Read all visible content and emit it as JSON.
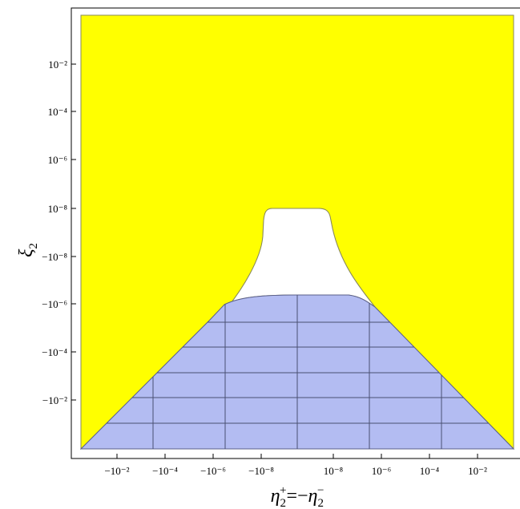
{
  "chart_data": {
    "type": "area",
    "title": "",
    "xlabel": "η₂⁺=−η₂⁻",
    "ylabel": "ξ₂",
    "x_scale": "symmetric-log",
    "y_scale": "symmetric-log",
    "x_tick_labels": [
      "−10⁻²",
      "−10⁻⁴",
      "−10⁻⁶",
      "−10⁻⁸",
      "10⁻⁸",
      "10⁻⁶",
      "10⁻⁴",
      "10⁻²"
    ],
    "y_tick_labels": [
      "10⁻²",
      "10⁻⁴",
      "10⁻⁶",
      "10⁻⁸",
      "−10⁻⁸",
      "−10⁻⁶",
      "−10⁻⁴",
      "−10⁻²"
    ],
    "regions": [
      {
        "fill": "yellow",
        "color": "#FFFF00",
        "description_key": "outer"
      },
      {
        "fill": "white",
        "color": "#FFFFFF",
        "description_key": "gap"
      },
      {
        "fill": "blue-meshed",
        "color": "#B3BCF2",
        "description_key": "bottom"
      }
    ],
    "grid": false,
    "legend": "none"
  },
  "colors": {
    "yellow": "#FFFF00",
    "blue": "#B3BCF2",
    "mesh": "#4A4F72",
    "boundary": "#8A8A5A"
  }
}
